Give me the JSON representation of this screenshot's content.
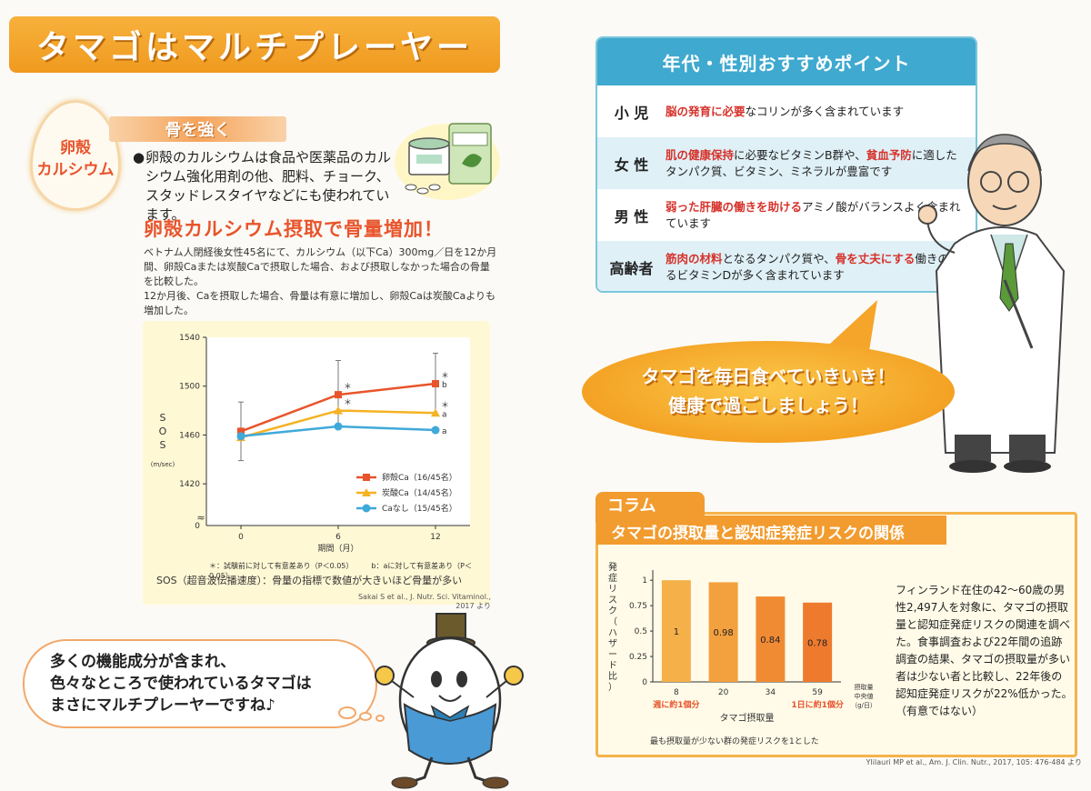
{
  "title": "タマゴはマルチプレーヤー",
  "left": {
    "egg_badge_line1": "卵殻",
    "egg_badge_line2": "カルシウム",
    "section_label": "骨を強く",
    "eggshell_text": "卵殻のカルシウムは食品や医薬品のカルシウム強化用剤の他、肥料、チョーク、スタッドレスタイヤなどにも使われています。",
    "bone_heading": "卵殻カルシウム摂取で骨量増加！",
    "study_text_1": "ベトナム人閉経後女性45名にて、カルシウム（以下Ca）300mg／日を12か月間、卵殻Caまたは炭酸Caで摂取した場合、および摂取しなかった場合の骨量を比較した。",
    "study_text_2": "12か月後、Caを摂取した場合、骨量は有意に増加し、卵殻Caは炭酸Caよりも増加した。",
    "sos_note": "＊：試験前に対して有意差あり（P＜0.05）　　　b：aに対して有意差あり（P＜0.05）",
    "sos_caption": "SOS（超音波伝播速度）：骨量の指標で数値が大きいほど骨量が多い",
    "sos_source": "Sakai S et al., J. Nutr. Sci. Vitaminol., 2017 より",
    "speech_line1": "多くの機能成分が含まれ、",
    "speech_line2": "色々なところで使われているタマゴは",
    "speech_line3": "まさにマルチプレーヤーですね♪"
  },
  "recommend": {
    "title": "年代・性別おすすめポイント",
    "rows": [
      {
        "label": "小 児",
        "hl1": "脳の発育に必要",
        "t1": "なコリンが多く含まれています",
        "hl2": "",
        "t2": ""
      },
      {
        "label": "女 性",
        "hl1": "肌の健康保持",
        "t1": "に必要なビタミンB群や、",
        "hl2": "貧血予防",
        "t2": "に適したタンパク質、ビタミン、ミネラルが豊富です"
      },
      {
        "label": "男 性",
        "hl1": "弱った肝臓の働きを助ける",
        "t1": "アミノ酸がバランスよく含まれています",
        "hl2": "",
        "t2": ""
      },
      {
        "label": "高齢者",
        "hl1": "筋肉の材料",
        "t1": "となるタンパク質や、",
        "hl2": "骨を丈夫にする",
        "t2": "働きのあるビタミンDが多く含まれています"
      }
    ]
  },
  "bubble_line1": "タマゴを毎日食べていきいき！",
  "bubble_line2": "健康で過ごしましょう！",
  "column": {
    "tab": "コラム",
    "banner": "タマゴの摂取量と認知症発症リスクの関係",
    "para": "フィンランド在住の42〜60歳の男性2,497人を対象に、タマゴの摂取量と認知症発症リスクの関連を調べた。食事調査および22年間の追跡調査の結果、タマゴの摂取量が多い者は少ない者と比較し、22年後の認知症発症リスクが22%低かった。（有意ではない）",
    "note": "最も摂取量が少ない群の発症リスクを1とした",
    "source": "Ylilauri MP et al., Am. J. Clin. Nutr., 2017, 105: 476-484 より"
  },
  "chart_data": [
    {
      "type": "line",
      "ylabel": "SOS",
      "yunit": "(m/sec)",
      "xlabel": "期間（月）",
      "x": [
        0,
        6,
        12
      ],
      "yticks": [
        1420,
        1460,
        1500,
        1540
      ],
      "ylim": [
        1400,
        1540
      ],
      "y_break": true,
      "y_zero_label": "0",
      "series": [
        {
          "name": "卵殻Ca（16/45名）",
          "color": "#e8542b",
          "marker": "square",
          "values": [
            1463,
            1493,
            1502
          ],
          "err": [
            24,
            28,
            25
          ],
          "labels": [
            "",
            "＊",
            "＊b"
          ]
        },
        {
          "name": "炭酸Ca（14/45名）",
          "color": "#f5b223",
          "marker": "triangle",
          "values": [
            1458,
            1480,
            1478
          ],
          "err": [
            0,
            0,
            0
          ],
          "labels": [
            "",
            "＊",
            "＊a"
          ]
        },
        {
          "name": "Caなし（15/45名）",
          "color": "#3fa9d9",
          "marker": "circle",
          "values": [
            1459,
            1467,
            1464
          ],
          "err": [
            0,
            0,
            0
          ],
          "labels": [
            "",
            "",
            "a"
          ]
        }
      ]
    },
    {
      "type": "bar",
      "ylabel": "発症リスク（ハザード比）",
      "xlabel": "タマゴ摂取量",
      "x_axis_label": "摂取量中央値（g/日）",
      "categories": [
        "8",
        "20",
        "34",
        "59"
      ],
      "sublabels": [
        "週に約1個分",
        "",
        "",
        "1日に約1個分"
      ],
      "values": [
        1,
        0.98,
        0.84,
        0.78
      ],
      "value_labels": [
        "1",
        "0.98",
        "0.84",
        "0.78"
      ],
      "yticks": [
        0,
        0.25,
        0.5,
        0.75,
        1
      ],
      "ytick_labels": [
        "0",
        "0.25",
        "0.5",
        "0.75",
        "1"
      ],
      "ylim": [
        0,
        1.1
      ],
      "colors": [
        "#f5b04a",
        "#f3a03f",
        "#f08b33",
        "#ee7a2e"
      ]
    }
  ]
}
